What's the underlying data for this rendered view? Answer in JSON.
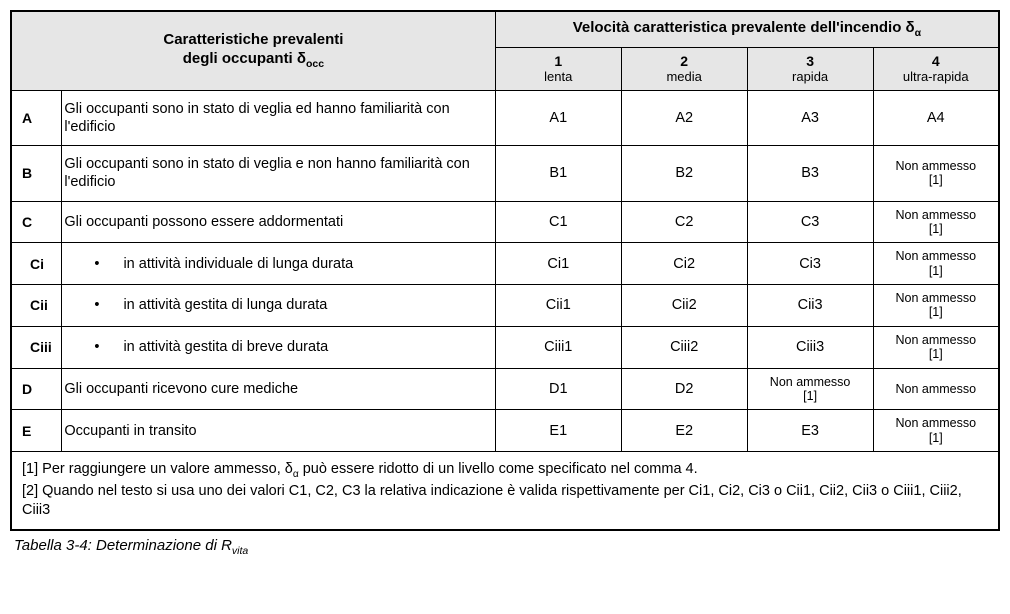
{
  "header": {
    "col_main_line1": "Caratteristiche prevalenti",
    "col_main_line2_pre": "degli occupanti δ",
    "col_main_line2_sub": "occ",
    "col_top_pre": "Velocità caratteristica prevalente dell'incendio δ",
    "col_top_sub": "α",
    "cols": [
      {
        "num": "1",
        "lbl": "lenta"
      },
      {
        "num": "2",
        "lbl": "media"
      },
      {
        "num": "3",
        "lbl": "rapida"
      },
      {
        "num": "4",
        "lbl": "ultra-rapida"
      }
    ]
  },
  "rows": [
    {
      "key": "A",
      "indent": false,
      "bullet": false,
      "desc": "Gli occupanti sono in stato di veglia ed hanno familiarità con l'edificio",
      "cells": [
        "A1",
        "A2",
        "A3",
        "A4"
      ],
      "na": [
        false,
        false,
        false,
        false
      ]
    },
    {
      "key": "B",
      "indent": false,
      "bullet": false,
      "desc": "Gli occupanti sono in stato di veglia e non hanno familiarità con l'edificio",
      "cells": [
        "B1",
        "B2",
        "B3",
        "Non ammesso [1]"
      ],
      "na": [
        false,
        false,
        false,
        true
      ]
    },
    {
      "key": "C",
      "indent": false,
      "bullet": false,
      "desc": "Gli occupanti possono essere addormentati",
      "cells": [
        "C1",
        "C2",
        "C3",
        "Non ammesso [1]"
      ],
      "na": [
        false,
        false,
        false,
        true
      ]
    },
    {
      "key": "Ci",
      "indent": true,
      "bullet": true,
      "desc": "in attività individuale di lunga durata",
      "cells": [
        "Ci1",
        "Ci2",
        "Ci3",
        "Non ammesso [1]"
      ],
      "na": [
        false,
        false,
        false,
        true
      ]
    },
    {
      "key": "Cii",
      "indent": true,
      "bullet": true,
      "desc": "in attività gestita di lunga durata",
      "cells": [
        "Cii1",
        "Cii2",
        "Cii3",
        "Non ammesso [1]"
      ],
      "na": [
        false,
        false,
        false,
        true
      ]
    },
    {
      "key": "Ciii",
      "indent": true,
      "bullet": true,
      "desc": "in attività gestita di breve durata",
      "cells": [
        "Ciii1",
        "Ciii2",
        "Ciii3",
        "Non ammesso [1]"
      ],
      "na": [
        false,
        false,
        false,
        true
      ]
    },
    {
      "key": "D",
      "indent": false,
      "bullet": false,
      "desc": "Gli occupanti ricevono cure mediche",
      "cells": [
        "D1",
        "D2",
        "Non ammesso [1]",
        "Non ammesso"
      ],
      "na": [
        false,
        false,
        true,
        true
      ]
    },
    {
      "key": "E",
      "indent": false,
      "bullet": false,
      "desc": "Occupanti in transito",
      "cells": [
        "E1",
        "E2",
        "E3",
        "Non ammesso [1]"
      ],
      "na": [
        false,
        false,
        false,
        true
      ]
    }
  ],
  "notes": {
    "line1_pre": "[1] Per raggiungere un valore ammesso, δ",
    "line1_sub": "α",
    "line1_post": " può essere ridotto di un livello come specificato nel comma 4.",
    "line2": "[2] Quando nel testo si usa uno dei valori C1, C2, C3 la relativa indicazione è valida rispettivamente per Ci1, Ci2, Ci3 o Cii1, Cii2, Cii3 o Ciii1, Ciii2, Ciii3"
  },
  "caption": {
    "pre": "Tabella 3-4: Determinazione di R",
    "sub": "vita"
  },
  "na_break": "Non ammesso"
}
